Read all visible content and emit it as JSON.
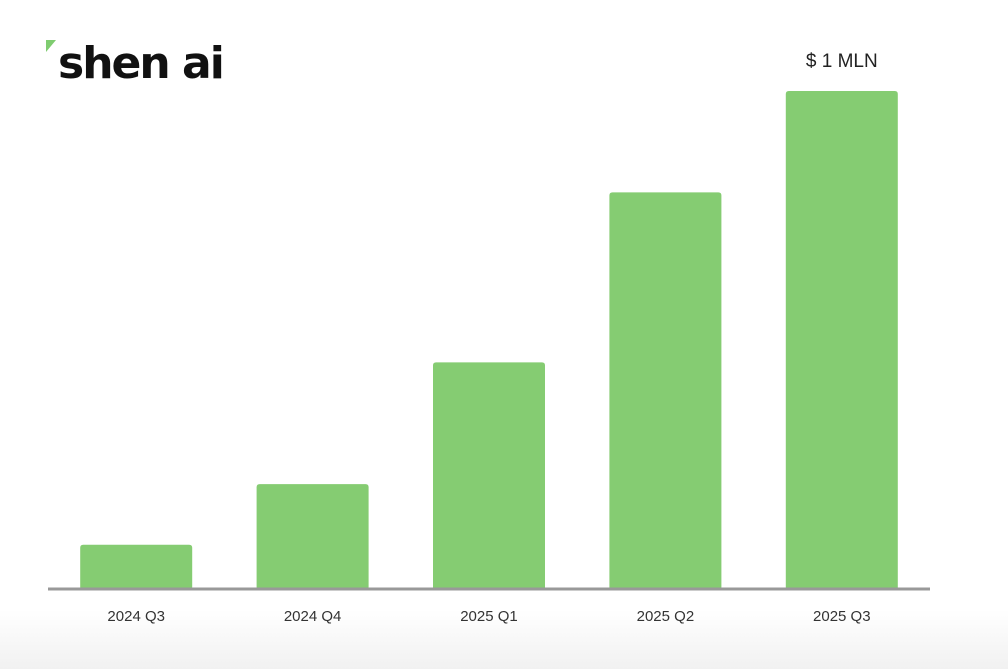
{
  "brand": {
    "name": "shen ai",
    "accent_color": "#7fcc70"
  },
  "chart_data": {
    "type": "bar",
    "categories": [
      "2024 Q3",
      "2024 Q4",
      "2025 Q1",
      "2025 Q2",
      "2025 Q3"
    ],
    "values": [
      0.087,
      0.209,
      0.454,
      0.796,
      1.0
    ],
    "ylim": [
      0,
      1.0
    ],
    "title": "",
    "xlabel": "",
    "ylabel": "",
    "grid": false,
    "bar_color": "#85cc72",
    "axis_color": "#999999",
    "annotations": [
      {
        "category": "2025 Q3",
        "text": "$ 1 MLN"
      }
    ]
  }
}
